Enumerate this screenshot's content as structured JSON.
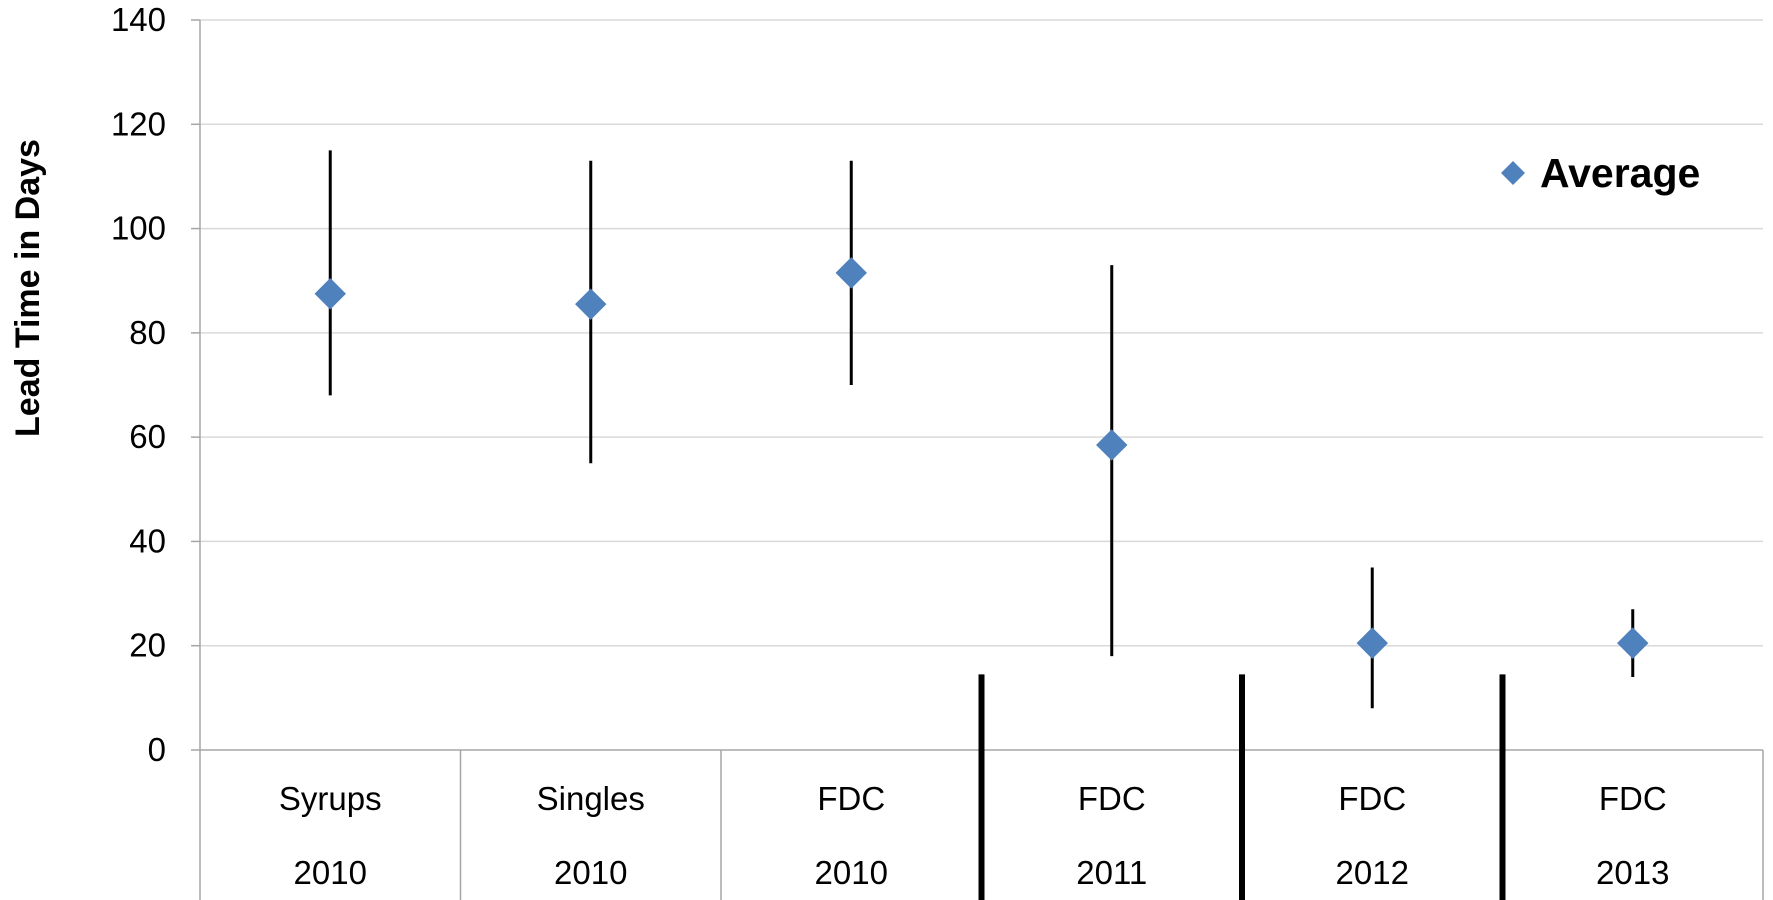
{
  "chart_data": {
    "type": "scatter",
    "title": "",
    "xlabel": "",
    "ylabel": "Lead Time in Days",
    "ylim": [
      0,
      140
    ],
    "yticks": [
      "0",
      "20",
      "40",
      "60",
      "80",
      "100",
      "120",
      "140"
    ],
    "grid": true,
    "legend_position": "top-right",
    "categories": [
      {
        "name": "Syrups",
        "year": "2010"
      },
      {
        "name": "Singles",
        "year": "2010"
      },
      {
        "name": "FDC",
        "year": "2010"
      },
      {
        "name": "FDC",
        "year": "2011"
      },
      {
        "name": "FDC",
        "year": "2012"
      },
      {
        "name": "FDC",
        "year": "2013"
      }
    ],
    "series": [
      {
        "name": "Average",
        "marker": "diamond",
        "color": "#4f81bd",
        "values": [
          87.5,
          85.5,
          91.5,
          58.5,
          20.5,
          20.5
        ]
      }
    ],
    "ranges": [
      {
        "low": 68,
        "high": 115
      },
      {
        "low": 55,
        "high": 113
      },
      {
        "low": 70,
        "high": 113
      },
      {
        "low": 18,
        "high": 93
      },
      {
        "low": 8,
        "high": 35
      },
      {
        "low": 14,
        "high": 27
      }
    ],
    "year_separators_after": [
      3,
      4,
      5
    ],
    "colors": {
      "marker": "#4f81bd",
      "range_line": "#000000",
      "grid": "#d9d9d9",
      "axis": "#a6a6a6",
      "separator": "#000000"
    }
  }
}
